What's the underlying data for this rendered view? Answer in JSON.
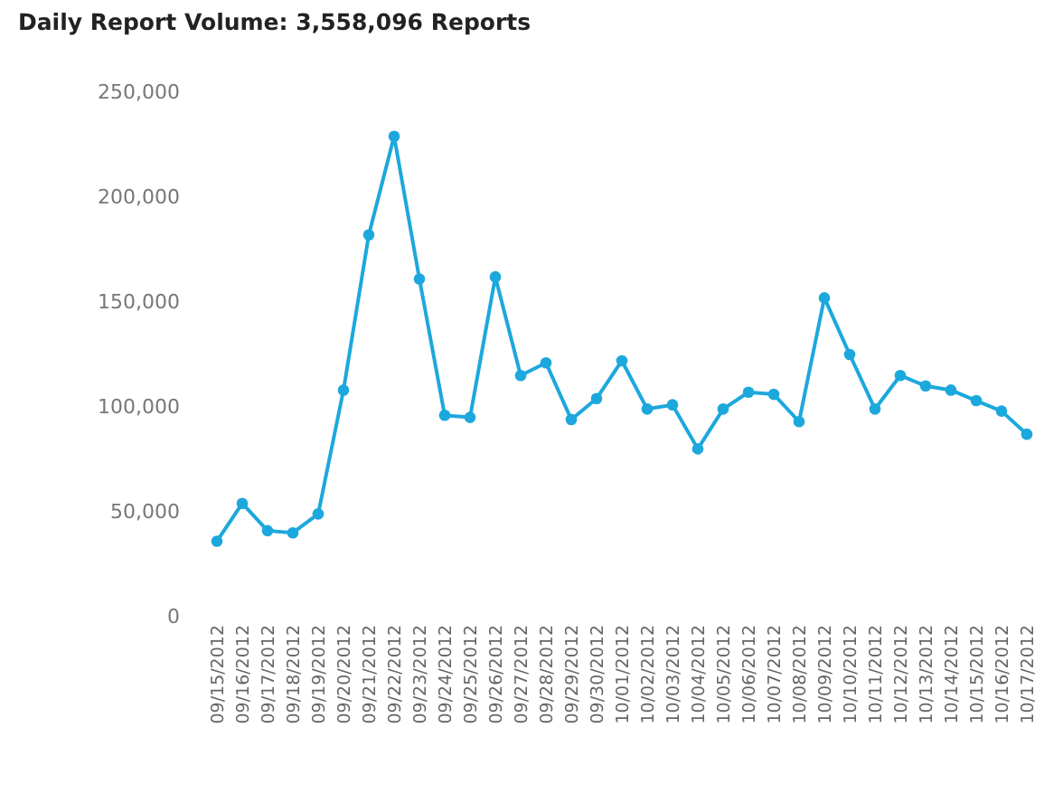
{
  "chart_data": {
    "type": "line",
    "title": "Daily Report Volume: 3,558,096 Reports",
    "categories": [
      "09/15/2012",
      "09/16/2012",
      "09/17/2012",
      "09/18/2012",
      "09/19/2012",
      "09/20/2012",
      "09/21/2012",
      "09/22/2012",
      "09/23/2012",
      "09/24/2012",
      "09/25/2012",
      "09/26/2012",
      "09/27/2012",
      "09/28/2012",
      "09/29/2012",
      "09/30/2012",
      "10/01/2012",
      "10/02/2012",
      "10/03/2012",
      "10/04/2012",
      "10/05/2012",
      "10/06/2012",
      "10/07/2012",
      "10/08/2012",
      "10/09/2012",
      "10/10/2012",
      "10/11/2012",
      "10/12/2012",
      "10/13/2012",
      "10/14/2012",
      "10/15/2012",
      "10/16/2012",
      "10/17/2012"
    ],
    "series": [
      {
        "color": "#1ca8dd",
        "values": [
          36000,
          54000,
          41000,
          40000,
          49000,
          108000,
          182000,
          229000,
          161000,
          96000,
          95000,
          162000,
          115000,
          121000,
          94000,
          104000,
          122000,
          99000,
          101000,
          80000,
          99000,
          107000,
          106000,
          93000,
          152000,
          125000,
          99000,
          115000,
          110000,
          108000,
          103000,
          98000,
          87000
        ]
      }
    ],
    "ylim": [
      0,
      250000
    ],
    "yticks": [
      0,
      {
        "value": 50000,
        "label": "50,000"
      },
      {
        "value": 100000,
        "label": "100,000"
      },
      {
        "value": 150000,
        "label": "150,000"
      },
      {
        "value": 200000,
        "label": "200,000"
      },
      {
        "value": 250000,
        "label": "250,000"
      }
    ],
    "grid": false,
    "legend": false,
    "marker": "circle",
    "line_style": "solid"
  }
}
